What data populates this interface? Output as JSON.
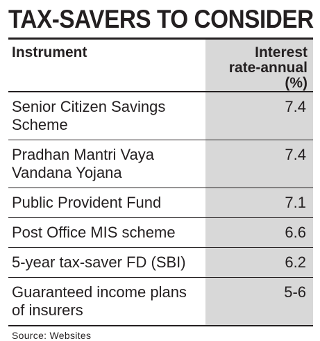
{
  "title": "TAX-SAVERS TO CONSIDER",
  "table": {
    "headers": {
      "instrument": "Instrument",
      "rate_line1": "Interest",
      "rate_line2": "rate-annual (%)"
    },
    "rows": [
      {
        "instrument": "Senior Citizen Savings Scheme",
        "rate": "7.4"
      },
      {
        "instrument": "Pradhan Mantri Vaya Vandana Yojana",
        "rate": "7.4"
      },
      {
        "instrument": "Public Provident Fund",
        "rate": "7.1"
      },
      {
        "instrument": "Post Office MIS scheme",
        "rate": "6.6"
      },
      {
        "instrument": "5-year tax-saver FD (SBI)",
        "rate": "6.2"
      },
      {
        "instrument": "Guaranteed income plans of insurers",
        "rate": "5-6"
      }
    ]
  },
  "source": "Source: Websites",
  "colors": {
    "text": "#231f20",
    "shade": "#d8d8d8",
    "background": "#ffffff"
  }
}
